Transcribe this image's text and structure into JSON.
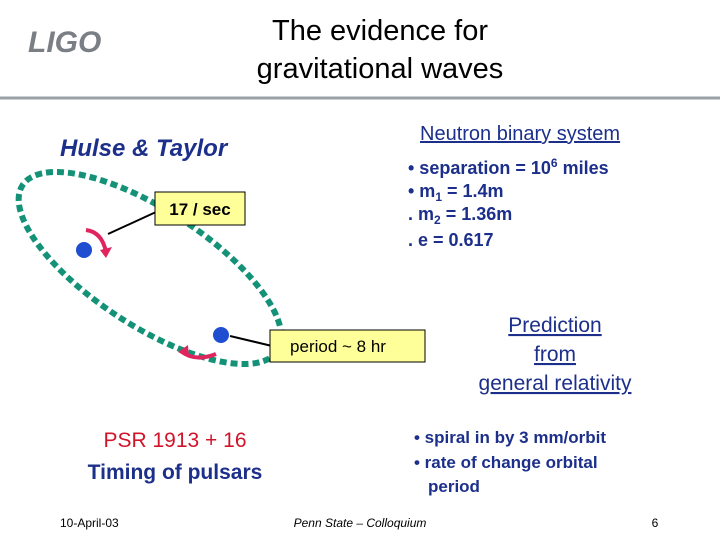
{
  "logo": "LIGO",
  "title": {
    "line1": "The evidence for",
    "line2": "gravitational waves"
  },
  "left_heading": "Hulse & Taylor",
  "orbit_labels": {
    "rate": "17 / sec",
    "period": "period ~ 8 hr"
  },
  "system": {
    "heading": "Neutron binary system",
    "items": [
      [
        "• separation = 10",
        "6",
        " miles"
      ],
      [
        "• m",
        "1",
        " = 1.4m"
      ],
      [
        ". m",
        "2",
        " = 1.36m"
      ],
      [
        ". e  = 0.617"
      ]
    ]
  },
  "pulsar": {
    "name": "PSR 1913 + 16",
    "caption": "Timing of pulsars"
  },
  "prediction": {
    "line1": "Prediction",
    "line2": "from",
    "line3": "general relativity"
  },
  "prediction_items": [
    "• spiral in by 3 mm/orbit",
    "• rate of change orbital",
    "period"
  ],
  "footer": {
    "date": "10-April-03",
    "event": "Penn State – Colloquium",
    "page": "6"
  }
}
